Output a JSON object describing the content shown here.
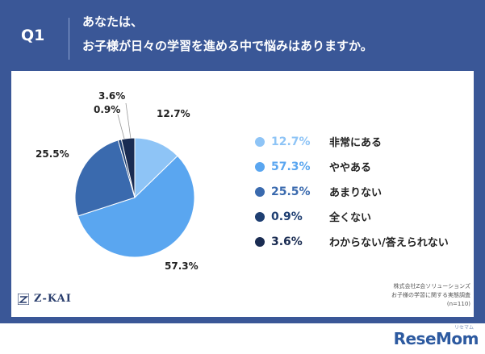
{
  "header": {
    "question_label": "Q1",
    "title_line1": "あなたは、",
    "title_line2": "お子様が日々の学習を進める中で悩みはありますか。"
  },
  "chart_data": {
    "type": "pie",
    "title": "",
    "unit": "%",
    "slices": [
      {
        "label": "非常にある",
        "value": 12.7,
        "display": "12.7%",
        "color": "#8ec4f6"
      },
      {
        "label": "ややある",
        "value": 57.3,
        "display": "57.3%",
        "color": "#5aa6f0"
      },
      {
        "label": "あまりない",
        "value": 25.5,
        "display": "25.5%",
        "color": "#3a6aae"
      },
      {
        "label": "全くない",
        "value": 0.9,
        "display": "0.9%",
        "color": "#1f3f72"
      },
      {
        "label": "わからない/答えられない",
        "value": 3.6,
        "display": "3.6%",
        "color": "#1a2c52"
      }
    ]
  },
  "logo": {
    "text": "Z-KAI"
  },
  "source": {
    "line1": "株式会社Z会ソリューションズ",
    "line2": "お子様の学習に関する実態調査",
    "line3": "(n=110)"
  },
  "watermark": {
    "text": "ReseMom",
    "sub": "リセマム"
  }
}
